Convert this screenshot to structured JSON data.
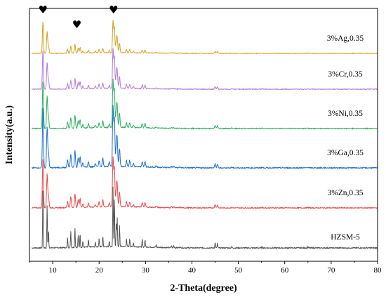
{
  "chart_data": {
    "type": "line",
    "xlabel": "2-Theta(degree)",
    "ylabel": "Intensity(a.u.)",
    "xlim": [
      5,
      80
    ],
    "x_ticks": [
      "10",
      "20",
      "30",
      "40",
      "50",
      "60",
      "70",
      "80"
    ],
    "y_ticks_shown": false,
    "grid": false,
    "legend": "none",
    "peak_markers": [
      {
        "symbol": "♥",
        "x": 7.9
      },
      {
        "symbol": "♥",
        "x": 15.2
      },
      {
        "symbol": "♥",
        "x": 23.1
      }
    ],
    "peaks": [
      [
        7.9,
        1.0
      ],
      [
        8.8,
        0.72
      ],
      [
        9.1,
        0.3
      ],
      [
        13.2,
        0.17
      ],
      [
        13.9,
        0.27
      ],
      [
        14.8,
        0.33
      ],
      [
        15.5,
        0.2
      ],
      [
        15.9,
        0.22
      ],
      [
        16.5,
        0.1
      ],
      [
        17.7,
        0.12
      ],
      [
        19.2,
        0.08
      ],
      [
        20.0,
        0.14
      ],
      [
        20.8,
        0.18
      ],
      [
        22.2,
        0.1
      ],
      [
        23.0,
        1.0
      ],
      [
        23.3,
        0.82
      ],
      [
        23.7,
        0.38
      ],
      [
        23.9,
        0.48
      ],
      [
        24.4,
        0.35
      ],
      [
        25.9,
        0.14
      ],
      [
        26.6,
        0.13
      ],
      [
        27.4,
        0.07
      ],
      [
        29.3,
        0.12
      ],
      [
        29.9,
        0.12
      ],
      [
        32.3,
        0.04
      ],
      [
        35.6,
        0.03
      ],
      [
        36.1,
        0.03
      ],
      [
        37.4,
        0.02
      ],
      [
        45.0,
        0.09
      ],
      [
        45.5,
        0.08
      ],
      [
        48.6,
        0.02
      ],
      [
        55.1,
        0.02
      ],
      [
        65.0,
        0.02
      ]
    ],
    "series": [
      {
        "name": "HZSM-5",
        "color": "#555555",
        "height": 0.95,
        "sharpness": 1.0
      },
      {
        "name": "3%Zn,0.35",
        "color": "#e84a4a",
        "height": 0.78,
        "sharpness": 0.75
      },
      {
        "name": "3%Ga,0.35",
        "color": "#1f6fd0",
        "height": 0.95,
        "sharpness": 0.75
      },
      {
        "name": "3%Ni,0.35",
        "color": "#2fae62",
        "height": 0.75,
        "sharpness": 0.75
      },
      {
        "name": "3%Cr,0.35",
        "color": "#b07ad8",
        "height": 0.62,
        "sharpness": 0.75
      },
      {
        "name": "3%Ag,0.35",
        "color": "#d4a020",
        "height": 0.5,
        "sharpness": 0.75
      }
    ]
  }
}
